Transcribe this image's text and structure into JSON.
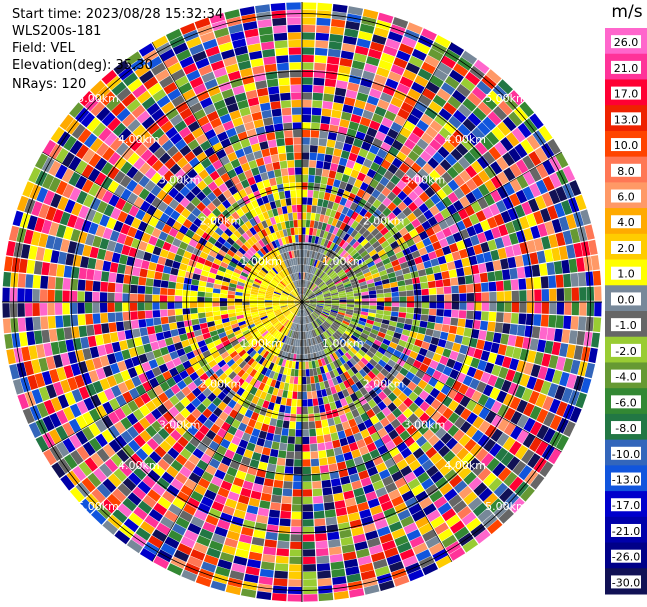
{
  "header": {
    "start_time": "Start time: 2023/08/28 15:32:34",
    "instrument": "WLS200s-181",
    "field": "Field: VEL",
    "elevation": "Elevation(deg): 35.30",
    "nrays": "NRays: 120"
  },
  "chart_data": {
    "type": "heatmap",
    "projection": "polar-ppi",
    "field": "VEL",
    "n_rays": 120,
    "range_rings_km": [
      1.0,
      2.0,
      3.0,
      4.0,
      5.0
    ],
    "max_range_km": 5.2,
    "ring_labels": [
      "1.00km",
      "2.00km",
      "3.00km",
      "4.00km",
      "5.00km"
    ],
    "colorbar": {
      "unit": "m/s",
      "ticks": [
        "26.0",
        "21.0",
        "17.0",
        "13.0",
        "10.0",
        "8.0",
        "6.0",
        "4.0",
        "2.0",
        "1.0",
        "0.0",
        "-1.0",
        "-2.0",
        "-4.0",
        "-6.0",
        "-8.0",
        "-10.0",
        "-13.0",
        "-17.0",
        "-21.0",
        "-26.0",
        "-30.0"
      ],
      "colors_top_to_bottom": [
        "#ff66cc",
        "#ff3399",
        "#ff0033",
        "#ee2200",
        "#ff4400",
        "#ff7755",
        "#ff9966",
        "#ffaa00",
        "#ffcc00",
        "#ffff00",
        "#778899",
        "#666666",
        "#99cc33",
        "#669933",
        "#338833",
        "#227744",
        "#3366bb",
        "#1155dd",
        "#0000cc",
        "#0000aa",
        "#000088",
        "#111155"
      ],
      "range": [
        -30.0,
        30.0
      ]
    },
    "near_range_pattern": {
      "inner_disk_km": 1.0,
      "positive_side": "west",
      "negative_side": "east",
      "near_zero_sectors": "north and south"
    },
    "far_range": "noisy, all bins randomly colored across full velocity range"
  }
}
